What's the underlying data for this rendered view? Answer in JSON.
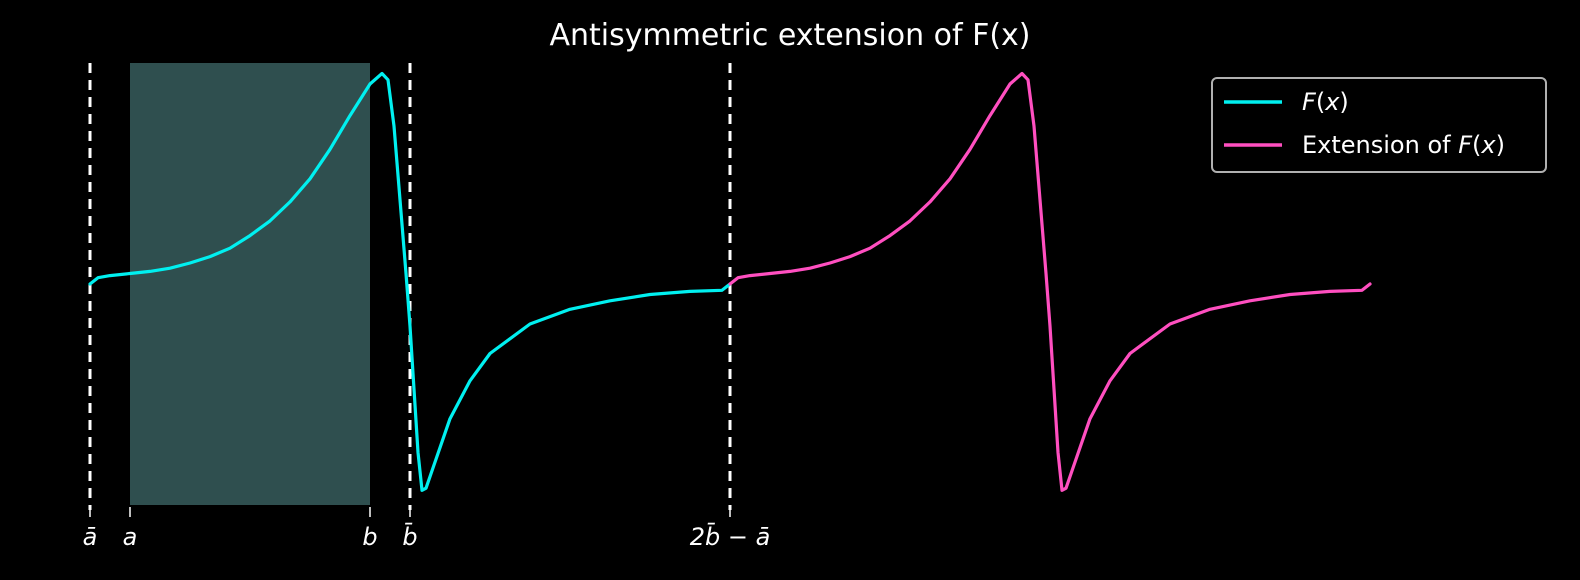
{
  "chart_data": {
    "type": "line",
    "title": "Antisymmetric extension of F(x)",
    "xlabel": "",
    "ylabel": "",
    "xlim": [
      -0.1,
      3.4
    ],
    "ylim": [
      -1.05,
      1.05
    ],
    "grid": false,
    "legend_position": "top-right",
    "shaded_region": {
      "x_start": 0,
      "x_end": 0.6,
      "color": "#2f4f4f"
    },
    "vertical_lines": [
      {
        "x": -0.1,
        "label": "ā"
      },
      {
        "x": 0.7,
        "label": "b̄"
      },
      {
        "x": 1.5,
        "label": "2b̄ − ā"
      }
    ],
    "x_ticks": [
      {
        "x": -0.1,
        "label": "ā"
      },
      {
        "x": 0.0,
        "label": "a"
      },
      {
        "x": 0.6,
        "label": "b"
      },
      {
        "x": 0.7,
        "label": "b̄"
      },
      {
        "x": 1.5,
        "label": "2b̄ − ā"
      }
    ],
    "series": [
      {
        "name": "F(x)",
        "color": "#00f0f0",
        "x": [
          -0.1,
          -0.08,
          -0.05,
          0.0,
          0.05,
          0.1,
          0.15,
          0.2,
          0.25,
          0.3,
          0.35,
          0.4,
          0.45,
          0.5,
          0.55,
          0.6,
          0.63,
          0.645,
          0.66,
          0.675,
          0.69,
          0.7,
          0.71,
          0.72,
          0.73,
          0.74,
          0.76,
          0.8,
          0.85,
          0.9,
          1.0,
          1.1,
          1.2,
          1.3,
          1.4,
          1.48,
          1.5
        ],
        "y": [
          0.0,
          0.03,
          0.04,
          0.05,
          0.06,
          0.075,
          0.1,
          0.13,
          0.17,
          0.23,
          0.3,
          0.39,
          0.5,
          0.64,
          0.8,
          0.95,
          1.0,
          0.97,
          0.75,
          0.4,
          0.05,
          -0.2,
          -0.5,
          -0.8,
          -0.98,
          -0.97,
          -0.86,
          -0.64,
          -0.46,
          -0.33,
          -0.19,
          -0.12,
          -0.08,
          -0.05,
          -0.035,
          -0.03,
          0.0
        ]
      },
      {
        "name": "Extension of F(x)",
        "color": "#ff4fc0",
        "x": [
          1.5,
          1.52,
          1.55,
          1.6,
          1.65,
          1.7,
          1.75,
          1.8,
          1.85,
          1.9,
          1.95,
          2.0,
          2.05,
          2.1,
          2.15,
          2.2,
          2.23,
          2.245,
          2.26,
          2.275,
          2.29,
          2.3,
          2.31,
          2.32,
          2.33,
          2.34,
          2.36,
          2.4,
          2.45,
          2.5,
          2.6,
          2.7,
          2.8,
          2.9,
          3.0,
          3.08,
          3.1
        ],
        "y": [
          0.0,
          0.03,
          0.04,
          0.05,
          0.06,
          0.075,
          0.1,
          0.13,
          0.17,
          0.23,
          0.3,
          0.39,
          0.5,
          0.64,
          0.8,
          0.95,
          1.0,
          0.97,
          0.75,
          0.4,
          0.05,
          -0.2,
          -0.5,
          -0.8,
          -0.98,
          -0.97,
          -0.86,
          -0.64,
          -0.46,
          -0.33,
          -0.19,
          -0.12,
          -0.08,
          -0.05,
          -0.035,
          -0.03,
          0.0
        ]
      }
    ]
  },
  "legend": {
    "items": [
      {
        "label": "F(x)",
        "color": "#00f0f0"
      },
      {
        "label": "Extension of F(x)",
        "color": "#ff4fc0"
      }
    ]
  }
}
